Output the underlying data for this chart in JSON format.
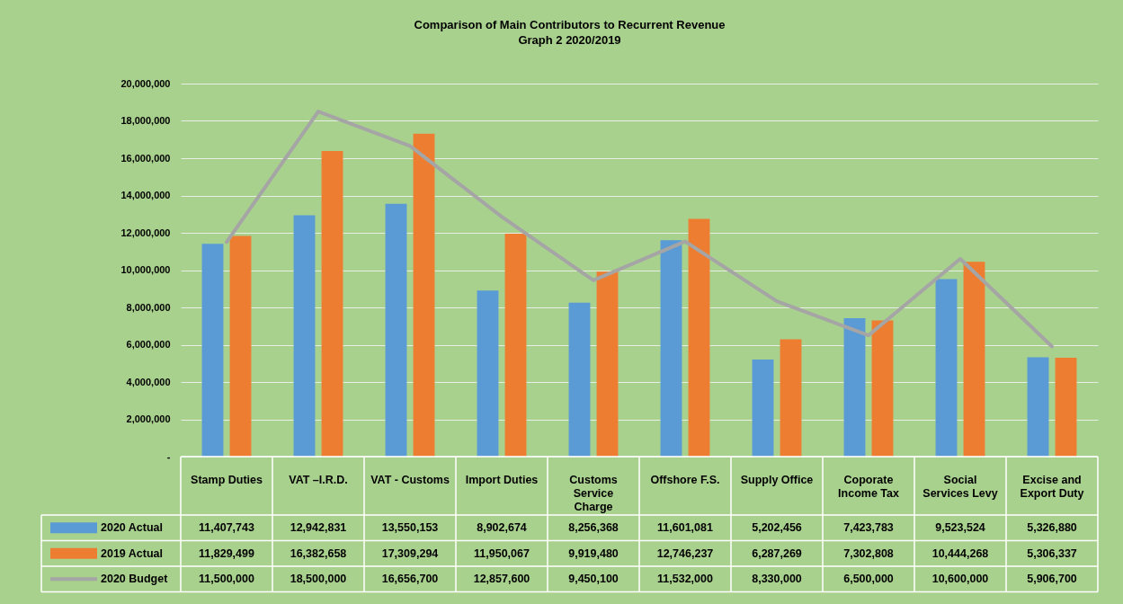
{
  "chart_data": {
    "type": "bar",
    "title": "Comparison of Main Contributors to Recurrent Revenue",
    "subtitle": "Graph 2 2020/2019",
    "categories": [
      "Stamp Duties",
      "VAT –I.R.D.",
      "VAT - Customs",
      "Import Duties",
      "Customs Service Charge",
      "Offshore F.S.",
      "Supply Office",
      "Coporate Income Tax",
      "Social Services Levy",
      "Excise and Export Duty"
    ],
    "series": [
      {
        "name": "2020 Actual",
        "color": "#5b9bd5",
        "values": [
          11407743,
          12942831,
          13550153,
          8902674,
          8256368,
          11601081,
          5202456,
          7423783,
          9523524,
          5326880
        ],
        "value_labels": [
          "11,407,743",
          "12,942,831",
          "13,550,153",
          "8,902,674",
          "8,256,368",
          "11,601,081",
          "5,202,456",
          "7,423,783",
          "9,523,524",
          "5,326,880"
        ]
      },
      {
        "name": "2019 Actual",
        "color": "#ed7d31",
        "values": [
          11829499,
          16382658,
          17309294,
          11950067,
          9919480,
          12746237,
          6287269,
          7302808,
          10444268,
          5306337
        ],
        "value_labels": [
          "11,829,499",
          "16,382,658",
          "17,309,294",
          "11,950,067",
          "9,919,480",
          "12,746,237",
          "6,287,269",
          "7,302,808",
          "10,444,268",
          "5,306,337"
        ]
      },
      {
        "name": "2020 Budget",
        "type": "line",
        "color": "#a5a5a5",
        "values": [
          11500000,
          18500000,
          16656700,
          12857600,
          9450100,
          11532000,
          8330000,
          6500000,
          10600000,
          5906700
        ],
        "value_labels": [
          "11,500,000",
          "18,500,000",
          "16,656,700",
          "12,857,600",
          "9,450,100",
          "11,532,000",
          "8,330,000",
          "6,500,000",
          "10,600,000",
          "5,906,700"
        ]
      }
    ],
    "ylim": [
      0,
      20000000
    ],
    "yticks": [
      {
        "value": 0,
        "label": "-"
      },
      {
        "value": 2000000,
        "label": "2,000,000"
      },
      {
        "value": 4000000,
        "label": "4,000,000"
      },
      {
        "value": 6000000,
        "label": "6,000,000"
      },
      {
        "value": 8000000,
        "label": "8,000,000"
      },
      {
        "value": 10000000,
        "label": "10,000,000"
      },
      {
        "value": 12000000,
        "label": "12,000,000"
      },
      {
        "value": 14000000,
        "label": "14,000,000"
      },
      {
        "value": 16000000,
        "label": "16,000,000"
      },
      {
        "value": 18000000,
        "label": "18,000,000"
      },
      {
        "value": 20000000,
        "label": "20,000,000"
      }
    ],
    "grid": "y",
    "legend": "bottom"
  }
}
